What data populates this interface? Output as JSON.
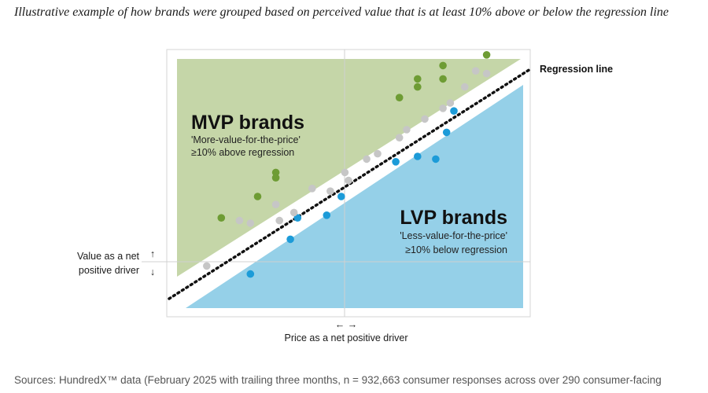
{
  "subtitle": "Illustrative example of how brands were grouped based on perceived value that is at least 10% above or below the regression line",
  "sources": "Sources: HundredX™ data (February 2025 with trailing three months, n = 932,663 consumer responses across over 290 consumer-facing",
  "chart_data": {
    "type": "scatter",
    "title": "",
    "regression_label": "Regression line",
    "x_axis_note": "Price as a net positive driver",
    "y_axis_note": [
      "Value as a net",
      "positive driver"
    ],
    "arrows": {
      "x": "← →",
      "y_up": "↑",
      "y_down": "↓"
    },
    "regions": {
      "mvp": {
        "title": "MVP brands",
        "desc": [
          "'More-value-for-the-price'",
          "≥10% above regression"
        ],
        "color": "#c5d6a8"
      },
      "lvp": {
        "title": "LVP brands",
        "desc": [
          "'Less-value-for-the-price'",
          "≥10% below regression"
        ],
        "color": "#95d0e8"
      }
    },
    "colors": {
      "mvp_point": "#6e9c34",
      "lvp_point": "#1c9bd8",
      "neutral_point": "#c6c6c6",
      "band": "#ececec"
    },
    "xlim": [
      0,
      1
    ],
    "ylim": [
      0,
      1
    ],
    "series": [
      {
        "group": "mvp",
        "points": [
          [
            0.15,
            0.37
          ],
          [
            0.25,
            0.45
          ],
          [
            0.3,
            0.52
          ],
          [
            0.3,
            0.54
          ],
          [
            0.64,
            0.82
          ],
          [
            0.69,
            0.89
          ],
          [
            0.69,
            0.86
          ],
          [
            0.76,
            0.94
          ],
          [
            0.76,
            0.89
          ],
          [
            0.88,
            0.98
          ]
        ]
      },
      {
        "group": "lvp",
        "points": [
          [
            0.23,
            0.16
          ],
          [
            0.34,
            0.29
          ],
          [
            0.36,
            0.37
          ],
          [
            0.44,
            0.38
          ],
          [
            0.48,
            0.45
          ],
          [
            0.63,
            0.58
          ],
          [
            0.69,
            0.6
          ],
          [
            0.74,
            0.59
          ],
          [
            0.77,
            0.69
          ],
          [
            0.79,
            0.77
          ]
        ]
      },
      {
        "group": "neutral",
        "points": [
          [
            0.11,
            0.19
          ],
          [
            0.2,
            0.36
          ],
          [
            0.23,
            0.35
          ],
          [
            0.3,
            0.42
          ],
          [
            0.31,
            0.36
          ],
          [
            0.35,
            0.39
          ],
          [
            0.4,
            0.48
          ],
          [
            0.45,
            0.47
          ],
          [
            0.49,
            0.54
          ],
          [
            0.5,
            0.51
          ],
          [
            0.55,
            0.59
          ],
          [
            0.58,
            0.61
          ],
          [
            0.64,
            0.67
          ],
          [
            0.66,
            0.7
          ],
          [
            0.71,
            0.74
          ],
          [
            0.76,
            0.78
          ],
          [
            0.82,
            0.86
          ],
          [
            0.85,
            0.92
          ],
          [
            0.88,
            0.91
          ],
          [
            0.78,
            0.8
          ]
        ]
      }
    ]
  }
}
